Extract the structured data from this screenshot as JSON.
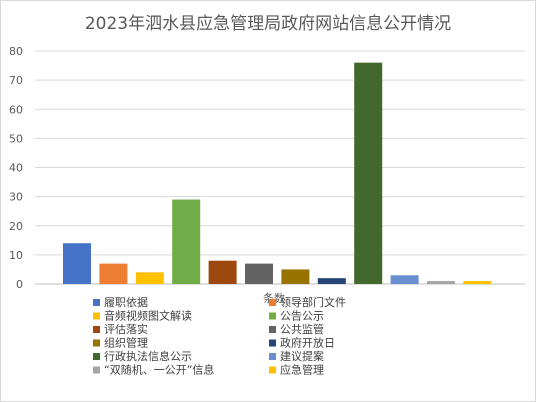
{
  "chart_data": {
    "type": "bar",
    "title": "2023年泗水县应急管理局政府网站信息公开情况",
    "xlabel": "条数",
    "ylabel": "",
    "ylim": [
      0,
      80
    ],
    "yticks": [
      0,
      10,
      20,
      30,
      40,
      50,
      60,
      70,
      80
    ],
    "grid": true,
    "legend": "bottom",
    "categories": [
      "履职依据",
      "领导部门文件",
      "音频视频图文解读",
      "公告公示",
      "评估落实",
      "公共监管",
      "组织管理",
      "政府开放日",
      "行政执法信息公示",
      "建议提案",
      "“双随机、一公开”信息",
      "应急管理"
    ],
    "values": [
      14,
      7,
      4,
      29,
      8,
      7,
      5,
      2,
      76,
      3,
      1,
      1
    ],
    "colors": [
      "#4472C4",
      "#ED7D31",
      "#FFC000",
      "#70AD47",
      "#9E480E",
      "#636363",
      "#997300",
      "#264478",
      "#43682B",
      "#698ED0",
      "#A5A5A5",
      "#FFC000"
    ]
  }
}
